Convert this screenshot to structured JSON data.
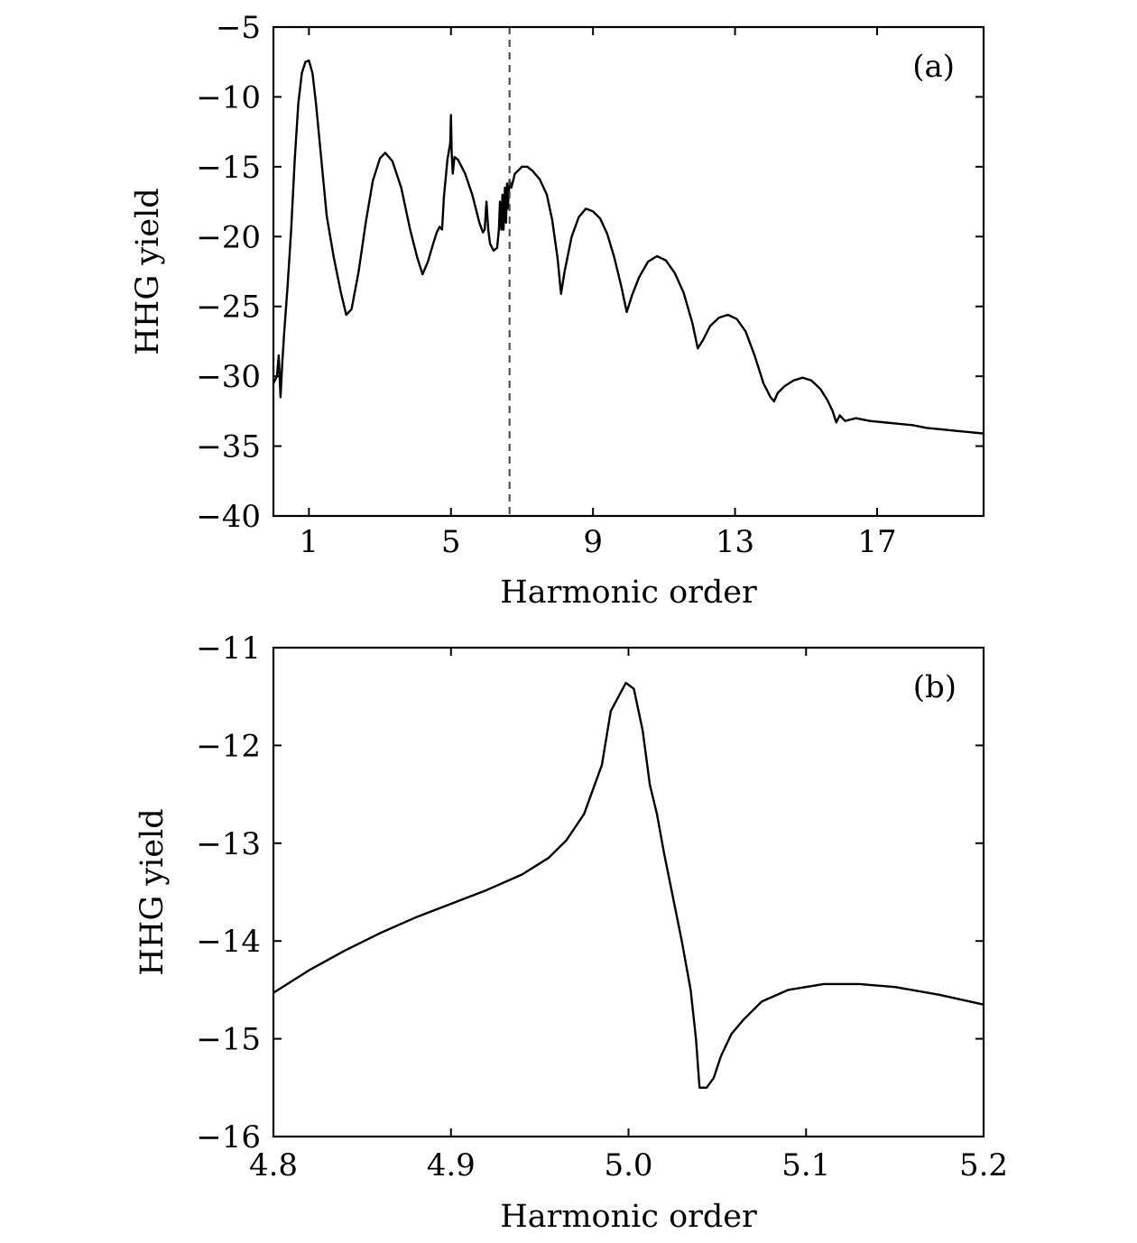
{
  "chart_data": [
    {
      "type": "line",
      "panel_label": "(a)",
      "xlabel": "Harmonic order",
      "ylabel": "HHG yield",
      "xlim": [
        0,
        20
      ],
      "ylim": [
        -40,
        -5
      ],
      "xticks": [
        1,
        5,
        9,
        13,
        17
      ],
      "xtick_labels": [
        "1",
        "5",
        "9",
        "13",
        "17"
      ],
      "yticks": [
        -5,
        -10,
        -15,
        -20,
        -25,
        -30,
        -35,
        -40
      ],
      "ytick_labels": [
        "−5",
        "−10",
        "−15",
        "−20",
        "−25",
        "−30",
        "−35",
        "−40"
      ],
      "reference_line": {
        "x": 6.65,
        "style": "dashed"
      },
      "grid": false,
      "series": [
        {
          "points": [
            [
              0.0,
              -30.5
            ],
            [
              0.1,
              -30.0
            ],
            [
              0.15,
              -28.5
            ],
            [
              0.2,
              -31.5
            ],
            [
              0.25,
              -29.0
            ],
            [
              0.3,
              -27.0
            ],
            [
              0.4,
              -23.5
            ],
            [
              0.5,
              -19.5
            ],
            [
              0.6,
              -14.5
            ],
            [
              0.7,
              -10.5
            ],
            [
              0.8,
              -8.3
            ],
            [
              0.9,
              -7.5
            ],
            [
              1.0,
              -7.4
            ],
            [
              1.1,
              -8.3
            ],
            [
              1.2,
              -10.5
            ],
            [
              1.35,
              -14.5
            ],
            [
              1.5,
              -18.5
            ],
            [
              1.7,
              -21.5
            ],
            [
              1.9,
              -24.0
            ],
            [
              2.05,
              -25.6
            ],
            [
              2.2,
              -25.2
            ],
            [
              2.4,
              -22.5
            ],
            [
              2.6,
              -19.0
            ],
            [
              2.8,
              -16.0
            ],
            [
              3.0,
              -14.4
            ],
            [
              3.15,
              -14.0
            ],
            [
              3.35,
              -14.6
            ],
            [
              3.6,
              -16.5
            ],
            [
              3.85,
              -19.5
            ],
            [
              4.05,
              -21.5
            ],
            [
              4.2,
              -22.7
            ],
            [
              4.35,
              -21.8
            ],
            [
              4.5,
              -20.5
            ],
            [
              4.6,
              -19.7
            ],
            [
              4.68,
              -19.3
            ],
            [
              4.75,
              -19.5
            ],
            [
              4.8,
              -17.2
            ],
            [
              4.9,
              -14.5
            ],
            [
              4.98,
              -13.3
            ],
            [
              5.0,
              -11.3
            ],
            [
              5.02,
              -14.0
            ],
            [
              5.05,
              -15.5
            ],
            [
              5.1,
              -14.3
            ],
            [
              5.2,
              -14.5
            ],
            [
              5.4,
              -15.5
            ],
            [
              5.6,
              -17.0
            ],
            [
              5.8,
              -19.0
            ],
            [
              5.9,
              -19.7
            ],
            [
              5.95,
              -19.5
            ],
            [
              6.0,
              -17.5
            ],
            [
              6.05,
              -19.5
            ],
            [
              6.1,
              -20.5
            ],
            [
              6.2,
              -21.0
            ],
            [
              6.3,
              -20.8
            ],
            [
              6.35,
              -19.5
            ],
            [
              6.38,
              -17.5
            ],
            [
              6.42,
              -19.5
            ],
            [
              6.45,
              -17.0
            ],
            [
              6.48,
              -19.5
            ],
            [
              6.52,
              -16.5
            ],
            [
              6.55,
              -19.0
            ],
            [
              6.58,
              -16.2
            ],
            [
              6.6,
              -18.0
            ],
            [
              6.65,
              -16.0
            ],
            [
              6.7,
              -16.5
            ],
            [
              6.8,
              -15.5
            ],
            [
              7.0,
              -15.0
            ],
            [
              7.15,
              -15.0
            ],
            [
              7.3,
              -15.3
            ],
            [
              7.5,
              -15.9
            ],
            [
              7.7,
              -17.0
            ],
            [
              7.85,
              -18.8
            ],
            [
              8.0,
              -21.5
            ],
            [
              8.1,
              -24.1
            ],
            [
              8.2,
              -22.5
            ],
            [
              8.4,
              -20.0
            ],
            [
              8.6,
              -18.6
            ],
            [
              8.8,
              -18.0
            ],
            [
              9.0,
              -18.2
            ],
            [
              9.2,
              -18.7
            ],
            [
              9.4,
              -19.8
            ],
            [
              9.6,
              -21.5
            ],
            [
              9.8,
              -23.6
            ],
            [
              9.95,
              -25.4
            ],
            [
              10.1,
              -24.2
            ],
            [
              10.3,
              -22.9
            ],
            [
              10.55,
              -21.8
            ],
            [
              10.8,
              -21.4
            ],
            [
              11.05,
              -21.7
            ],
            [
              11.3,
              -22.6
            ],
            [
              11.55,
              -24.0
            ],
            [
              11.8,
              -26.2
            ],
            [
              11.95,
              -28.0
            ],
            [
              12.1,
              -27.4
            ],
            [
              12.3,
              -26.4
            ],
            [
              12.55,
              -25.8
            ],
            [
              12.8,
              -25.6
            ],
            [
              13.05,
              -25.9
            ],
            [
              13.3,
              -26.8
            ],
            [
              13.55,
              -28.5
            ],
            [
              13.8,
              -30.5
            ],
            [
              14.0,
              -31.5
            ],
            [
              14.1,
              -31.8
            ],
            [
              14.2,
              -31.2
            ],
            [
              14.4,
              -30.7
            ],
            [
              14.65,
              -30.3
            ],
            [
              14.9,
              -30.1
            ],
            [
              15.15,
              -30.3
            ],
            [
              15.4,
              -30.9
            ],
            [
              15.6,
              -31.7
            ],
            [
              15.75,
              -32.5
            ],
            [
              15.85,
              -33.3
            ],
            [
              15.95,
              -32.8
            ],
            [
              16.1,
              -33.2
            ],
            [
              16.4,
              -33.0
            ],
            [
              16.8,
              -33.2
            ],
            [
              17.2,
              -33.3
            ],
            [
              17.6,
              -33.4
            ],
            [
              18.0,
              -33.5
            ],
            [
              18.4,
              -33.7
            ],
            [
              18.8,
              -33.8
            ],
            [
              19.2,
              -33.9
            ],
            [
              19.6,
              -34.0
            ],
            [
              20.0,
              -34.1
            ]
          ]
        }
      ]
    },
    {
      "type": "line",
      "panel_label": "(b)",
      "xlabel": "Harmonic order",
      "ylabel": "HHG yield",
      "xlim": [
        4.8,
        5.2
      ],
      "ylim": [
        -16,
        -11
      ],
      "xticks": [
        4.8,
        4.9,
        5.0,
        5.1,
        5.2
      ],
      "xtick_labels": [
        "4.8",
        "4.9",
        "5.0",
        "5.1",
        "5.2"
      ],
      "yticks": [
        -11,
        -12,
        -13,
        -14,
        -15,
        -16
      ],
      "ytick_labels": [
        "−11",
        "−12",
        "−13",
        "−14",
        "−15",
        "−16"
      ],
      "grid": false,
      "series": [
        {
          "points": [
            [
              4.8,
              -14.53
            ],
            [
              4.82,
              -14.3
            ],
            [
              4.84,
              -14.1
            ],
            [
              4.86,
              -13.92
            ],
            [
              4.88,
              -13.76
            ],
            [
              4.9,
              -13.62
            ],
            [
              4.92,
              -13.48
            ],
            [
              4.94,
              -13.32
            ],
            [
              4.955,
              -13.15
            ],
            [
              4.965,
              -12.97
            ],
            [
              4.975,
              -12.7
            ],
            [
              4.985,
              -12.2
            ],
            [
              4.99,
              -11.65
            ],
            [
              4.9985,
              -11.36
            ],
            [
              5.003,
              -11.42
            ],
            [
              5.008,
              -11.85
            ],
            [
              5.012,
              -12.4
            ],
            [
              5.016,
              -12.7
            ],
            [
              5.02,
              -13.1
            ],
            [
              5.03,
              -14.0
            ],
            [
              5.035,
              -14.5
            ],
            [
              5.038,
              -15.0
            ],
            [
              5.04,
              -15.5
            ],
            [
              5.044,
              -15.5
            ],
            [
              5.048,
              -15.4
            ],
            [
              5.052,
              -15.18
            ],
            [
              5.058,
              -14.95
            ],
            [
              5.065,
              -14.8
            ],
            [
              5.075,
              -14.62
            ],
            [
              5.09,
              -14.5
            ],
            [
              5.11,
              -14.44
            ],
            [
              5.13,
              -14.44
            ],
            [
              5.15,
              -14.47
            ],
            [
              5.175,
              -14.55
            ],
            [
              5.2,
              -14.65
            ]
          ]
        }
      ]
    }
  ]
}
